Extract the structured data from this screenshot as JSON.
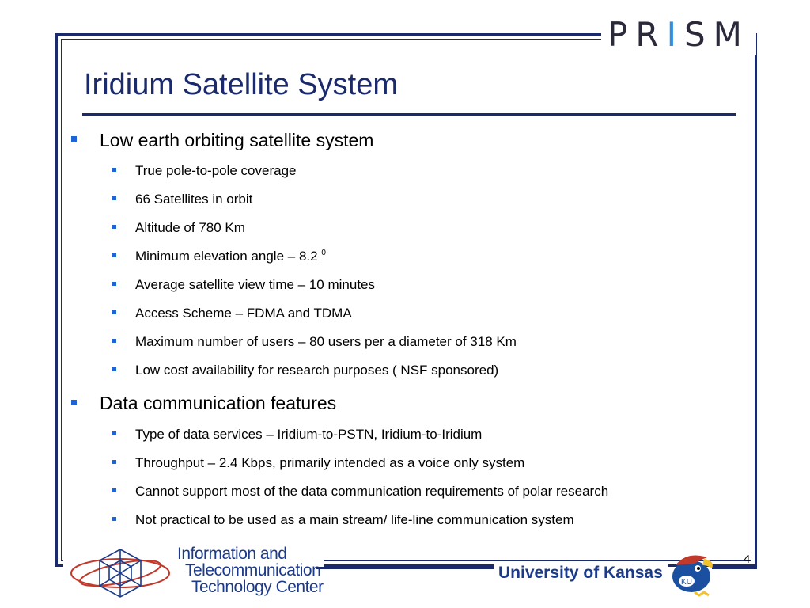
{
  "header": {
    "logo_text": "PR",
    "logo_i": "I",
    "logo_tail": "SM",
    "title": "Iridium Satellite System"
  },
  "sections": [
    {
      "heading": "Low earth orbiting satellite system",
      "items": [
        "True pole-to-pole coverage",
        "66 Satellites in orbit",
        "Altitude of 780 Km",
        "Minimum elevation angle – 8.2",
        "Average satellite view time – 10 minutes",
        "Access Scheme – FDMA and TDMA",
        "Maximum number of users – 80 users per a diameter of 318 Km",
        "Low cost availability for research purposes ( NSF sponsored)"
      ],
      "superscript": "0"
    },
    {
      "heading": "Data communication features",
      "items": [
        "Type of data services – Iridium-to-PSTN, Iridium-to-Iridium",
        "Throughput – 2.4 Kbps, primarily intended as a voice only system",
        "Cannot support most of the data communication requirements of polar research",
        "Not practical to be used as a main stream/ life-line communication system"
      ]
    }
  ],
  "footer": {
    "ittc_line1": "Information and",
    "ittc_line2": "Telecommunication",
    "ittc_line3": "Technology Center",
    "university": "University of Kansas",
    "mascot_label": "KU",
    "page_number": "4"
  },
  "colors": {
    "frame": "#1b2a6b",
    "bullet": "#1e64d4",
    "title": "#1b2a6b",
    "logo_accent": "#2f8fe0"
  }
}
